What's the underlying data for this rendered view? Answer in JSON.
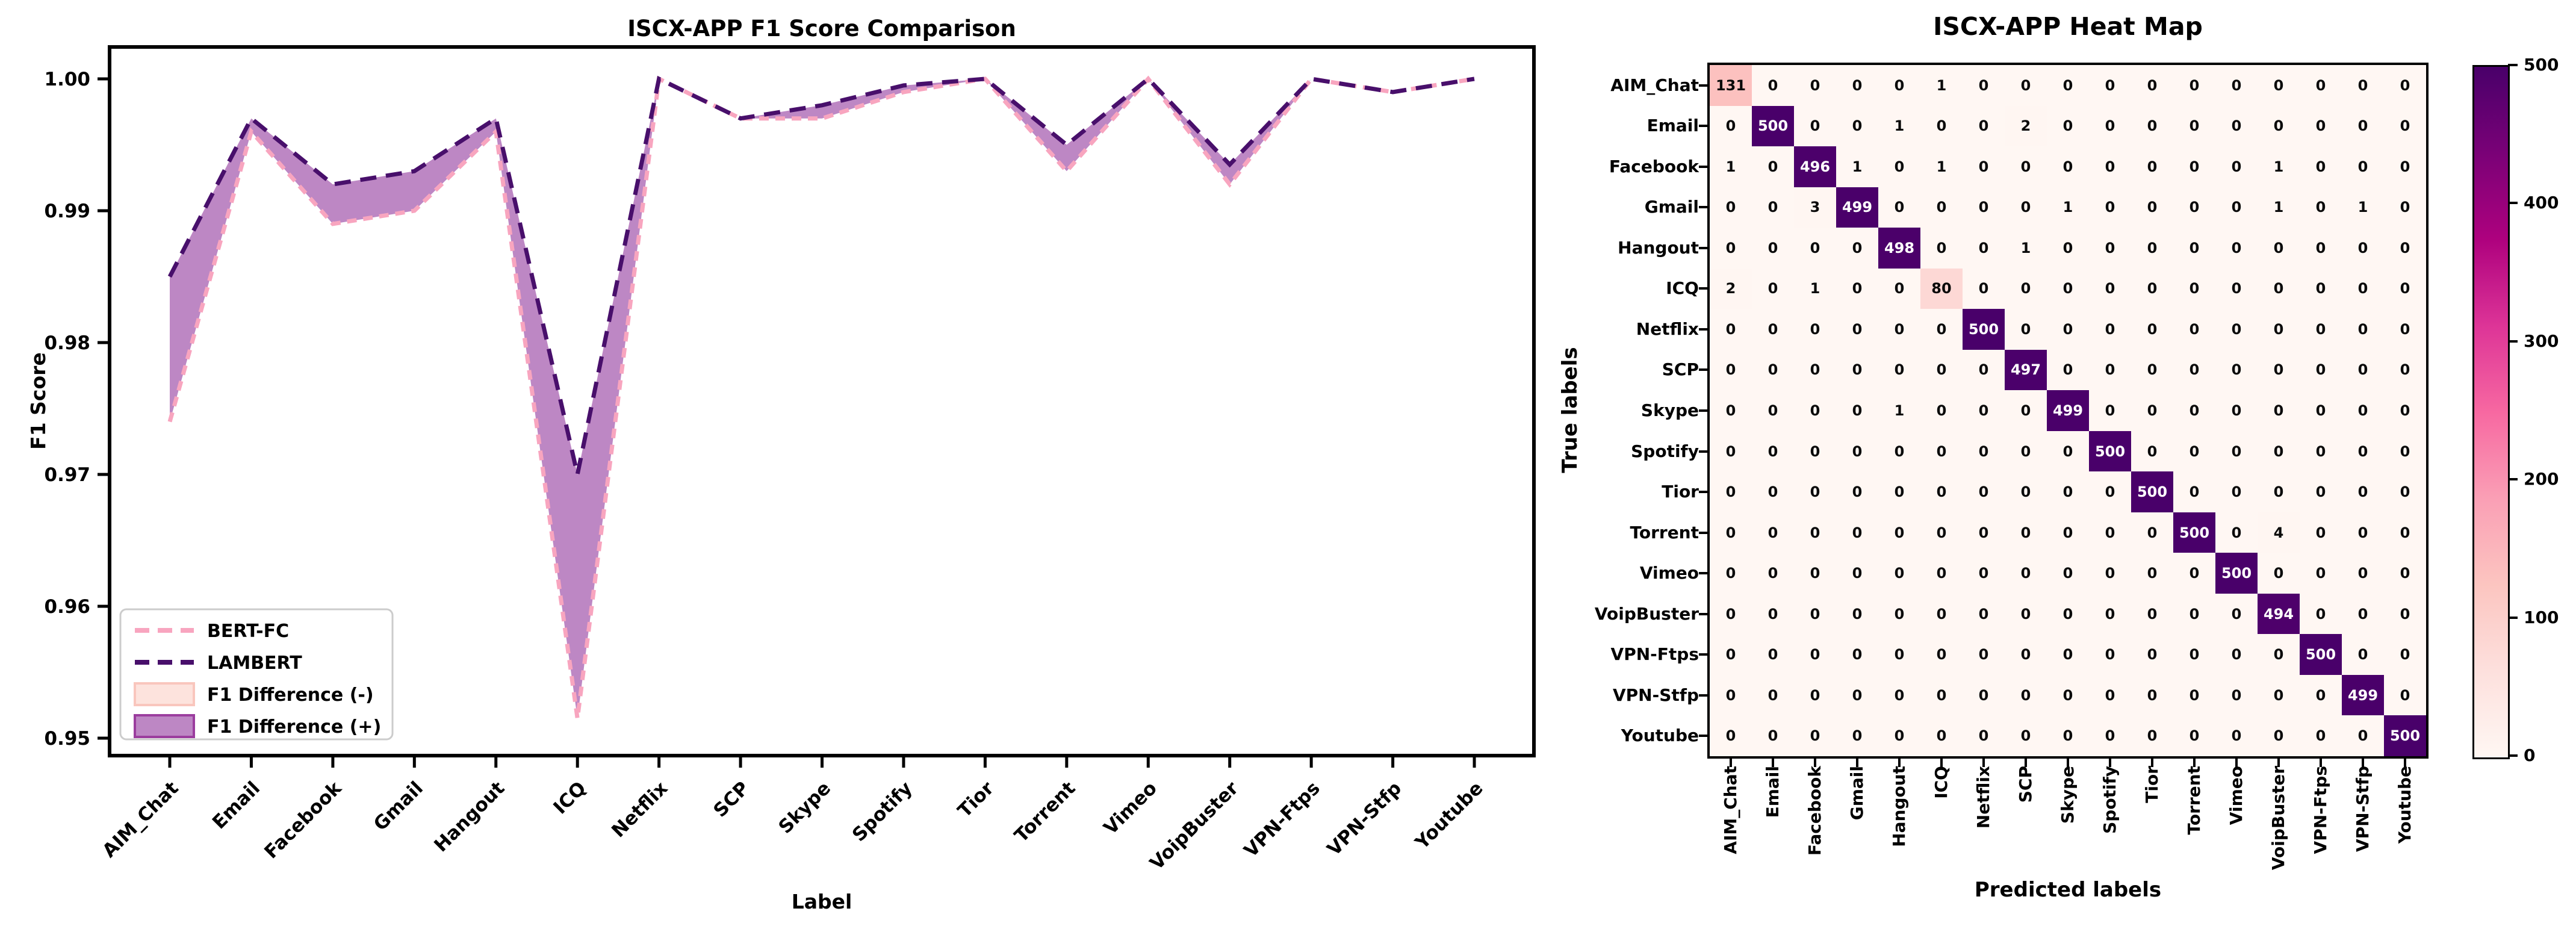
{
  "chart_data": [
    {
      "type": "line",
      "title": "ISCX-APP F1 Score Comparison",
      "xlabel": "Label",
      "ylabel": "F1 Score",
      "categories": [
        "AIM_Chat",
        "Email",
        "Facebook",
        "Gmail",
        "Hangout",
        "ICQ",
        "Netflix",
        "SCP",
        "Skype",
        "Spotify",
        "Tior",
        "Torrent",
        "Vimeo",
        "VoipBuster",
        "VPN-Ftps",
        "VPN-Stfp",
        "Youtube"
      ],
      "series": [
        {
          "name": "BERT-FC",
          "color": "#f8a5bf",
          "linestyle": "dashed",
          "values": [
            0.974,
            0.996,
            0.989,
            0.99,
            0.996,
            0.9515,
            1.0,
            0.997,
            0.997,
            0.999,
            1.0,
            0.993,
            1.0,
            0.992,
            1.0,
            0.999,
            1.0
          ]
        },
        {
          "name": "LAMBERT",
          "color": "#480f6b",
          "linestyle": "dashed",
          "values": [
            0.985,
            0.997,
            0.992,
            0.993,
            0.997,
            0.97,
            1.0,
            0.997,
            0.998,
            0.9995,
            1.0,
            0.995,
            1.0,
            0.9935,
            1.0,
            0.999,
            1.0
          ]
        }
      ],
      "fills": [
        {
          "name": "F1 Difference (-)",
          "color": "#fde3dd",
          "edge": "#f9c6bd"
        },
        {
          "name": "F1 Difference (+)",
          "color": "#bd87c4",
          "edge": "#9b3d9e"
        }
      ],
      "legend": [
        "BERT-FC",
        "LAMBERT",
        "F1 Difference (-)",
        "F1 Difference (+)"
      ],
      "legend_position": "lower left",
      "yticks": [
        0.95,
        0.96,
        0.97,
        0.98,
        0.99,
        1.0
      ],
      "ylim": [
        0.9487,
        1.0024
      ],
      "grid": false
    },
    {
      "type": "heatmap",
      "title": "ISCX-APP Heat Map",
      "xlabel": "Predicted labels",
      "ylabel": "True labels",
      "labels": [
        "AIM_Chat",
        "Email",
        "Facebook",
        "Gmail",
        "Hangout",
        "ICQ",
        "Netflix",
        "SCP",
        "Skype",
        "Spotify",
        "Tior",
        "Torrent",
        "Vimeo",
        "VoipBuster",
        "VPN-Ftps",
        "VPN-Stfp",
        "Youtube"
      ],
      "matrix": [
        [
          131,
          0,
          0,
          0,
          0,
          1,
          0,
          0,
          0,
          0,
          0,
          0,
          0,
          0,
          0,
          0,
          0
        ],
        [
          0,
          500,
          0,
          0,
          1,
          0,
          0,
          2,
          0,
          0,
          0,
          0,
          0,
          0,
          0,
          0,
          0
        ],
        [
          1,
          0,
          496,
          1,
          0,
          1,
          0,
          0,
          0,
          0,
          0,
          0,
          0,
          1,
          0,
          0,
          0
        ],
        [
          0,
          0,
          3,
          499,
          0,
          0,
          0,
          0,
          1,
          0,
          0,
          0,
          0,
          1,
          0,
          1,
          0
        ],
        [
          0,
          0,
          0,
          0,
          498,
          0,
          0,
          1,
          0,
          0,
          0,
          0,
          0,
          0,
          0,
          0,
          0
        ],
        [
          2,
          0,
          1,
          0,
          0,
          80,
          0,
          0,
          0,
          0,
          0,
          0,
          0,
          0,
          0,
          0,
          0
        ],
        [
          0,
          0,
          0,
          0,
          0,
          0,
          500,
          0,
          0,
          0,
          0,
          0,
          0,
          0,
          0,
          0,
          0
        ],
        [
          0,
          0,
          0,
          0,
          0,
          0,
          0,
          497,
          0,
          0,
          0,
          0,
          0,
          0,
          0,
          0,
          0
        ],
        [
          0,
          0,
          0,
          0,
          1,
          0,
          0,
          0,
          499,
          0,
          0,
          0,
          0,
          0,
          0,
          0,
          0
        ],
        [
          0,
          0,
          0,
          0,
          0,
          0,
          0,
          0,
          0,
          500,
          0,
          0,
          0,
          0,
          0,
          0,
          0
        ],
        [
          0,
          0,
          0,
          0,
          0,
          0,
          0,
          0,
          0,
          0,
          500,
          0,
          0,
          0,
          0,
          0,
          0
        ],
        [
          0,
          0,
          0,
          0,
          0,
          0,
          0,
          0,
          0,
          0,
          0,
          500,
          0,
          4,
          0,
          0,
          0
        ],
        [
          0,
          0,
          0,
          0,
          0,
          0,
          0,
          0,
          0,
          0,
          0,
          0,
          500,
          0,
          0,
          0,
          0
        ],
        [
          0,
          0,
          0,
          0,
          0,
          0,
          0,
          0,
          0,
          0,
          0,
          0,
          0,
          494,
          0,
          0,
          0
        ],
        [
          0,
          0,
          0,
          0,
          0,
          0,
          0,
          0,
          0,
          0,
          0,
          0,
          0,
          0,
          500,
          0,
          0
        ],
        [
          0,
          0,
          0,
          0,
          0,
          0,
          0,
          0,
          0,
          0,
          0,
          0,
          0,
          0,
          0,
          499,
          0
        ],
        [
          0,
          0,
          0,
          0,
          0,
          0,
          0,
          0,
          0,
          0,
          0,
          0,
          0,
          0,
          0,
          0,
          500
        ]
      ],
      "colormap": "RdPu",
      "vmin": 0,
      "vmax": 500,
      "colorbar_ticks": [
        0,
        100,
        200,
        300,
        400,
        500
      ],
      "colors": {
        "min": "#fff7f3",
        "max": "#49006a"
      }
    }
  ]
}
